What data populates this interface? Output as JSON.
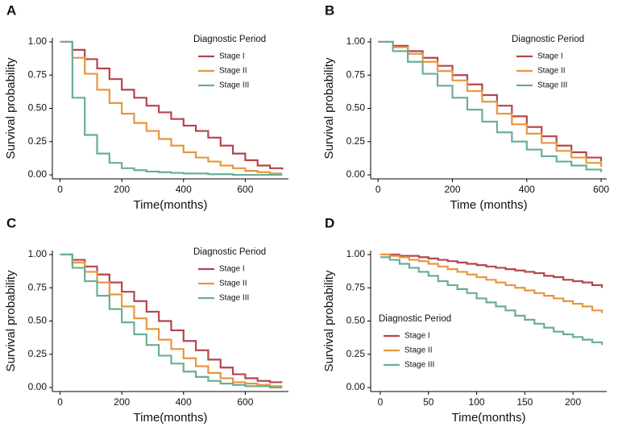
{
  "chart_data": [
    {
      "type": "line",
      "step": true,
      "panel": "A",
      "x_label": "Time(months)",
      "y_label": "Survival probability",
      "legend_title": "Diagnostic Period",
      "legend_position": "upper right",
      "x": [
        0,
        40,
        80,
        120,
        160,
        200,
        240,
        280,
        320,
        360,
        400,
        440,
        480,
        520,
        560,
        600,
        640,
        680,
        720
      ],
      "xlim": [
        -25,
        740
      ],
      "xticks": [
        0,
        200,
        400,
        600
      ],
      "ylim": [
        -0.03,
        1.03
      ],
      "yticks": [
        {
          "value": 0,
          "label": "0.00"
        },
        {
          "value": 0.25,
          "label": "0.25"
        },
        {
          "value": 0.5,
          "label": "0.50"
        },
        {
          "value": 0.75,
          "label": "0.75"
        },
        {
          "value": 1,
          "label": "1.00"
        }
      ],
      "series": [
        {
          "name": "Stage I",
          "color": "#b5444c",
          "values": [
            1,
            0.94,
            0.87,
            0.8,
            0.72,
            0.64,
            0.58,
            0.52,
            0.47,
            0.42,
            0.37,
            0.33,
            0.28,
            0.22,
            0.16,
            0.11,
            0.07,
            0.05,
            0.04
          ]
        },
        {
          "name": "Stage II",
          "color": "#e8963e",
          "values": [
            1,
            0.88,
            0.76,
            0.64,
            0.54,
            0.46,
            0.39,
            0.33,
            0.27,
            0.22,
            0.17,
            0.13,
            0.1,
            0.07,
            0.05,
            0.03,
            0.02,
            0.01,
            0.01
          ]
        },
        {
          "name": "Stage III",
          "color": "#6aae93",
          "values": [
            1,
            0.58,
            0.3,
            0.16,
            0.09,
            0.05,
            0.035,
            0.025,
            0.02,
            0.015,
            0.01,
            0.01,
            0.005,
            0.005,
            0,
            0,
            0,
            0,
            0
          ]
        }
      ]
    },
    {
      "type": "line",
      "step": true,
      "panel": "B",
      "x_label": "Time (months)",
      "y_label": "Survival probability",
      "legend_title": "Diagnostic Period",
      "legend_position": "upper right",
      "x": [
        0,
        40,
        80,
        120,
        160,
        200,
        240,
        280,
        320,
        360,
        400,
        440,
        480,
        520,
        560,
        600
      ],
      "xlim": [
        -20,
        615
      ],
      "xticks": [
        0,
        200,
        400,
        600
      ],
      "ylim": [
        -0.03,
        1.03
      ],
      "yticks": [
        {
          "value": 0,
          "label": "0.00"
        },
        {
          "value": 0.25,
          "label": "0.25"
        },
        {
          "value": 0.5,
          "label": "0.50"
        },
        {
          "value": 0.75,
          "label": "0.75"
        },
        {
          "value": 1,
          "label": "1.00"
        }
      ],
      "series": [
        {
          "name": "Stage I",
          "color": "#b5444c",
          "values": [
            1,
            0.97,
            0.93,
            0.88,
            0.82,
            0.75,
            0.68,
            0.6,
            0.52,
            0.44,
            0.36,
            0.29,
            0.22,
            0.17,
            0.13,
            0.1
          ]
        },
        {
          "name": "Stage II",
          "color": "#e8963e",
          "values": [
            1,
            0.96,
            0.91,
            0.85,
            0.78,
            0.71,
            0.63,
            0.55,
            0.46,
            0.38,
            0.31,
            0.24,
            0.18,
            0.13,
            0.09,
            0.06
          ]
        },
        {
          "name": "Stage III",
          "color": "#6aae93",
          "values": [
            1,
            0.93,
            0.85,
            0.76,
            0.67,
            0.58,
            0.49,
            0.4,
            0.32,
            0.25,
            0.19,
            0.14,
            0.1,
            0.07,
            0.04,
            0.02
          ]
        }
      ]
    },
    {
      "type": "line",
      "step": true,
      "panel": "C",
      "x_label": "Time(months)",
      "y_label": "Survival probability",
      "legend_title": "Diagnostic Period",
      "legend_position": "upper right",
      "x": [
        0,
        40,
        80,
        120,
        160,
        200,
        240,
        280,
        320,
        360,
        400,
        440,
        480,
        520,
        560,
        600,
        640,
        680,
        720
      ],
      "xlim": [
        -25,
        740
      ],
      "xticks": [
        0,
        200,
        400,
        600
      ],
      "ylim": [
        -0.03,
        1.03
      ],
      "yticks": [
        {
          "value": 0,
          "label": "0.00"
        },
        {
          "value": 0.25,
          "label": "0.25"
        },
        {
          "value": 0.5,
          "label": "0.50"
        },
        {
          "value": 0.75,
          "label": "0.75"
        },
        {
          "value": 1,
          "label": "1.00"
        }
      ],
      "series": [
        {
          "name": "Stage I",
          "color": "#b5444c",
          "values": [
            1,
            0.96,
            0.91,
            0.85,
            0.79,
            0.72,
            0.65,
            0.57,
            0.5,
            0.43,
            0.35,
            0.28,
            0.21,
            0.15,
            0.1,
            0.07,
            0.05,
            0.04,
            0.04
          ]
        },
        {
          "name": "Stage II",
          "color": "#e8963e",
          "values": [
            1,
            0.94,
            0.87,
            0.79,
            0.7,
            0.61,
            0.52,
            0.44,
            0.36,
            0.29,
            0.22,
            0.16,
            0.11,
            0.07,
            0.04,
            0.03,
            0.02,
            0.01,
            0.01
          ]
        },
        {
          "name": "Stage III",
          "color": "#6aae93",
          "values": [
            1,
            0.9,
            0.8,
            0.69,
            0.59,
            0.49,
            0.4,
            0.32,
            0.24,
            0.18,
            0.12,
            0.08,
            0.05,
            0.03,
            0.02,
            0.01,
            0.01,
            0,
            0
          ]
        }
      ]
    },
    {
      "type": "line",
      "step": true,
      "panel": "D",
      "x_label": "Time(months)",
      "y_label": "Survival probability",
      "legend_title": "Diagnostic Period",
      "legend_position": "center left",
      "x": [
        0,
        10,
        20,
        30,
        40,
        50,
        60,
        70,
        80,
        90,
        100,
        110,
        120,
        130,
        140,
        150,
        160,
        170,
        180,
        190,
        200,
        210,
        220,
        230
      ],
      "xlim": [
        -10,
        235
      ],
      "xticks": [
        0,
        50,
        100,
        150,
        200
      ],
      "ylim": [
        -0.03,
        1.03
      ],
      "yticks": [
        {
          "value": 0,
          "label": "0.00"
        },
        {
          "value": 0.25,
          "label": "0.25"
        },
        {
          "value": 0.5,
          "label": "0.50"
        },
        {
          "value": 0.75,
          "label": "0.75"
        },
        {
          "value": 1,
          "label": "1.00"
        }
      ],
      "series": [
        {
          "name": "Stage I",
          "color": "#b5444c",
          "values": [
            1,
            1,
            0.99,
            0.99,
            0.98,
            0.97,
            0.96,
            0.95,
            0.94,
            0.93,
            0.92,
            0.91,
            0.9,
            0.89,
            0.88,
            0.87,
            0.86,
            0.84,
            0.83,
            0.81,
            0.8,
            0.79,
            0.77,
            0.75
          ]
        },
        {
          "name": "Stage II",
          "color": "#e8963e",
          "values": [
            1,
            0.99,
            0.98,
            0.96,
            0.95,
            0.93,
            0.91,
            0.89,
            0.87,
            0.85,
            0.83,
            0.81,
            0.79,
            0.77,
            0.75,
            0.73,
            0.71,
            0.69,
            0.67,
            0.65,
            0.63,
            0.61,
            0.58,
            0.56
          ]
        },
        {
          "name": "Stage III",
          "color": "#6aae93",
          "values": [
            0.98,
            0.96,
            0.93,
            0.9,
            0.87,
            0.84,
            0.8,
            0.77,
            0.74,
            0.71,
            0.67,
            0.64,
            0.61,
            0.58,
            0.54,
            0.51,
            0.48,
            0.45,
            0.42,
            0.4,
            0.38,
            0.36,
            0.34,
            0.32
          ]
        }
      ]
    }
  ]
}
